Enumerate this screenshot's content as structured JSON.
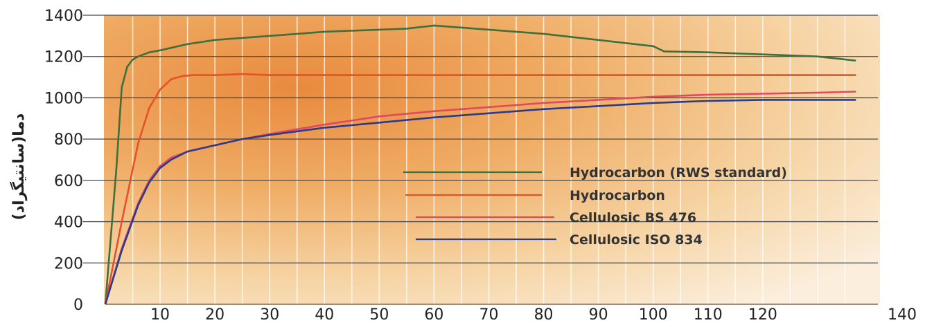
{
  "chart_data": {
    "type": "line",
    "title": "",
    "xlabel": "",
    "ylabel": "دما(سانتیگراد)",
    "xlim": [
      0,
      140
    ],
    "ylim": [
      0,
      1400
    ],
    "x_ticks": [
      10,
      20,
      30,
      40,
      50,
      60,
      70,
      80,
      90,
      100,
      110,
      120,
      140
    ],
    "x_tick_labels": [
      "10",
      "20",
      "30",
      "40",
      "50",
      "60",
      "70",
      "80",
      "90",
      "100",
      "110",
      "120",
      "140"
    ],
    "y_ticks": [
      0,
      200,
      400,
      600,
      800,
      1000,
      1200,
      1400
    ],
    "y_tick_labels": [
      "0",
      "200",
      "400",
      "600",
      "800",
      "1000",
      "1200",
      "1400"
    ],
    "grid": true,
    "legend_position": "center-right",
    "background": "orange-gradient",
    "series": [
      {
        "name": "Hydrocarbon (RWS standard)",
        "color": "#3f6f3c",
        "x": [
          0,
          2,
          3,
          4,
          5,
          6,
          8,
          10,
          15,
          20,
          30,
          40,
          50,
          55,
          60,
          70,
          80,
          90,
          100,
          102,
          110,
          120,
          130,
          137
        ],
        "y": [
          0,
          650,
          1050,
          1150,
          1185,
          1200,
          1220,
          1230,
          1260,
          1280,
          1300,
          1320,
          1330,
          1335,
          1350,
          1330,
          1310,
          1280,
          1250,
          1225,
          1220,
          1210,
          1200,
          1180
        ]
      },
      {
        "name": "Hydrocarbon",
        "color": "#e8502a",
        "x": [
          0,
          3,
          6,
          8,
          10,
          12,
          14,
          16,
          20,
          25,
          30,
          40,
          60,
          80,
          100,
          120,
          137
        ],
        "y": [
          0,
          400,
          780,
          950,
          1040,
          1090,
          1105,
          1110,
          1110,
          1115,
          1110,
          1110,
          1110,
          1110,
          1110,
          1110,
          1110
        ]
      },
      {
        "name": "Cellulosic BS 476",
        "color": "#e04a5f",
        "x": [
          0,
          3,
          6,
          8,
          10,
          12,
          15,
          20,
          25,
          30,
          40,
          45,
          50,
          60,
          70,
          80,
          90,
          100,
          110,
          120,
          130,
          137
        ],
        "y": [
          0,
          270,
          490,
          600,
          670,
          710,
          740,
          770,
          800,
          825,
          870,
          890,
          910,
          935,
          955,
          975,
          990,
          1005,
          1015,
          1020,
          1025,
          1030
        ]
      },
      {
        "name": "Cellulosic ISO 834",
        "color": "#2a3a8c",
        "x": [
          0,
          3,
          6,
          8,
          10,
          12,
          15,
          20,
          25,
          30,
          40,
          50,
          60,
          70,
          80,
          90,
          100,
          110,
          120,
          130,
          137
        ],
        "y": [
          0,
          260,
          480,
          590,
          660,
          700,
          740,
          770,
          800,
          820,
          855,
          880,
          905,
          925,
          945,
          960,
          975,
          985,
          990,
          990,
          990
        ]
      }
    ]
  }
}
